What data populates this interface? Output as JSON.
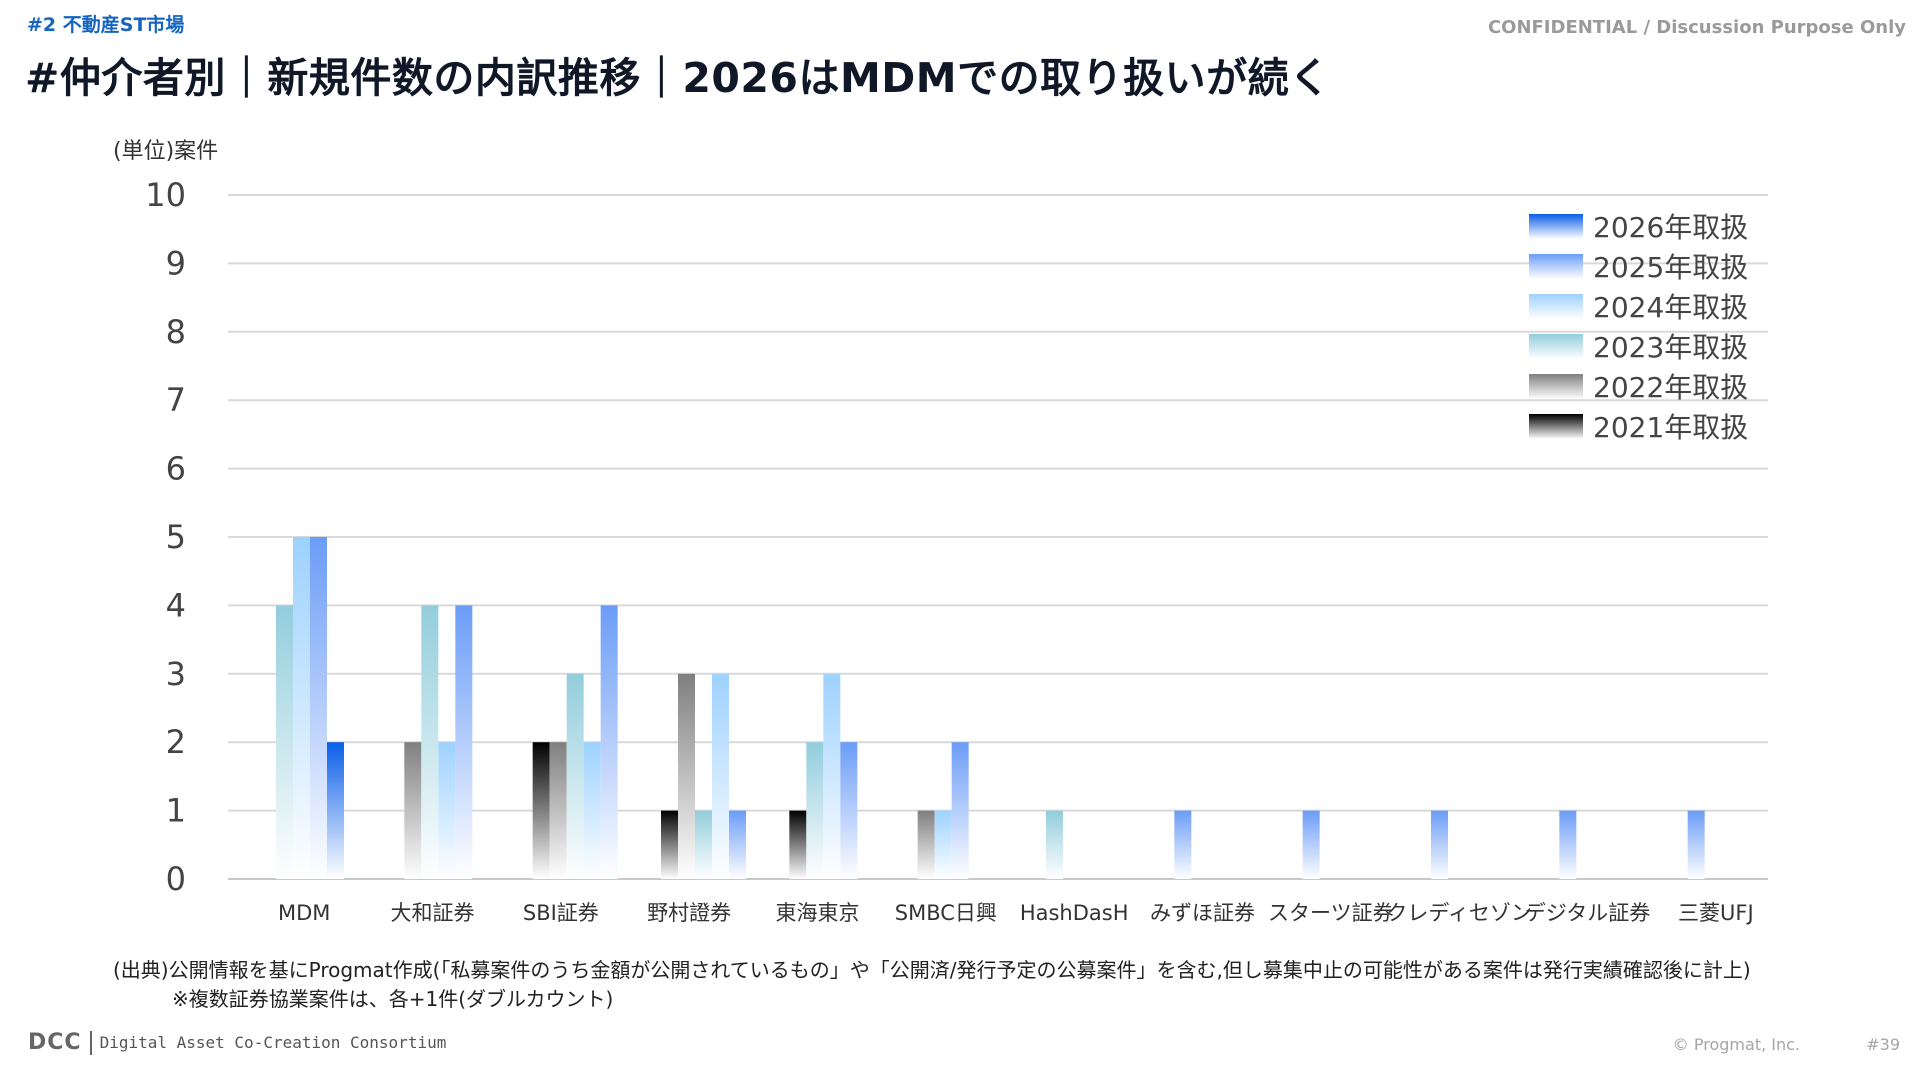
{
  "header": {
    "section_tag": "#2  不動産ST市場",
    "confidential": "CONFIDENTIAL / Discussion Purpose Only",
    "title": "#仲介者別｜新規件数の内訳推移｜2026はMDMでの取り扱いが続く"
  },
  "chart_data": {
    "type": "bar",
    "ylabel": "(単位)案件",
    "ylim": [
      0,
      10
    ],
    "yticks": [
      0,
      1,
      2,
      3,
      4,
      5,
      6,
      7,
      8,
      9,
      10
    ],
    "grid": true,
    "legend_position": "top-right",
    "categories": [
      "MDM",
      "大和証券",
      "SBI証券",
      "野村證券",
      "東海東京",
      "SMBC日興",
      "HashDasH",
      "みずほ証券",
      "スターツ証券",
      "クレディセゾン",
      "デジタル証券",
      "三菱UFJ"
    ],
    "series": [
      {
        "name": "2021年取扱",
        "color": "#000000",
        "values": [
          0,
          0,
          2,
          1,
          1,
          0,
          0,
          0,
          0,
          0,
          0,
          0
        ]
      },
      {
        "name": "2022年取扱",
        "color": "#7f7f7f",
        "values": [
          0,
          2,
          2,
          3,
          0,
          1,
          0,
          0,
          0,
          0,
          0,
          0
        ]
      },
      {
        "name": "2023年取扱",
        "color": "#92cddc",
        "values": [
          4,
          4,
          3,
          1,
          2,
          0,
          1,
          0,
          0,
          0,
          0,
          0
        ]
      },
      {
        "name": "2024年取扱",
        "color": "#9dd1ff",
        "values": [
          5,
          2,
          2,
          3,
          3,
          1,
          0,
          0,
          0,
          0,
          0,
          0
        ]
      },
      {
        "name": "2025年取扱",
        "color": "#6b9cf7",
        "values": [
          5,
          4,
          4,
          1,
          2,
          2,
          0,
          1,
          1,
          1,
          1,
          1
        ]
      },
      {
        "name": "2026年取扱",
        "color": "#0a5ee8",
        "values": [
          2,
          0,
          0,
          0,
          0,
          0,
          0,
          0,
          0,
          0,
          0,
          0
        ]
      }
    ]
  },
  "footer": {
    "source_line1": "(出典)公開情報を基にProgmat作成(「私募案件のうち金額が公開されているもの」や「公開済/発行予定の公募案件」を含む,但し募集中止の可能性がある案件は発行実績確認後に計上)",
    "source_line2": "※複数証券協業案件は、各+1件(ダブルカウント)",
    "logo_text": "DCC",
    "org_name": "Digital Asset Co-Creation Consortium",
    "copyright": "© Progmat, Inc.",
    "page_number": "#39"
  }
}
